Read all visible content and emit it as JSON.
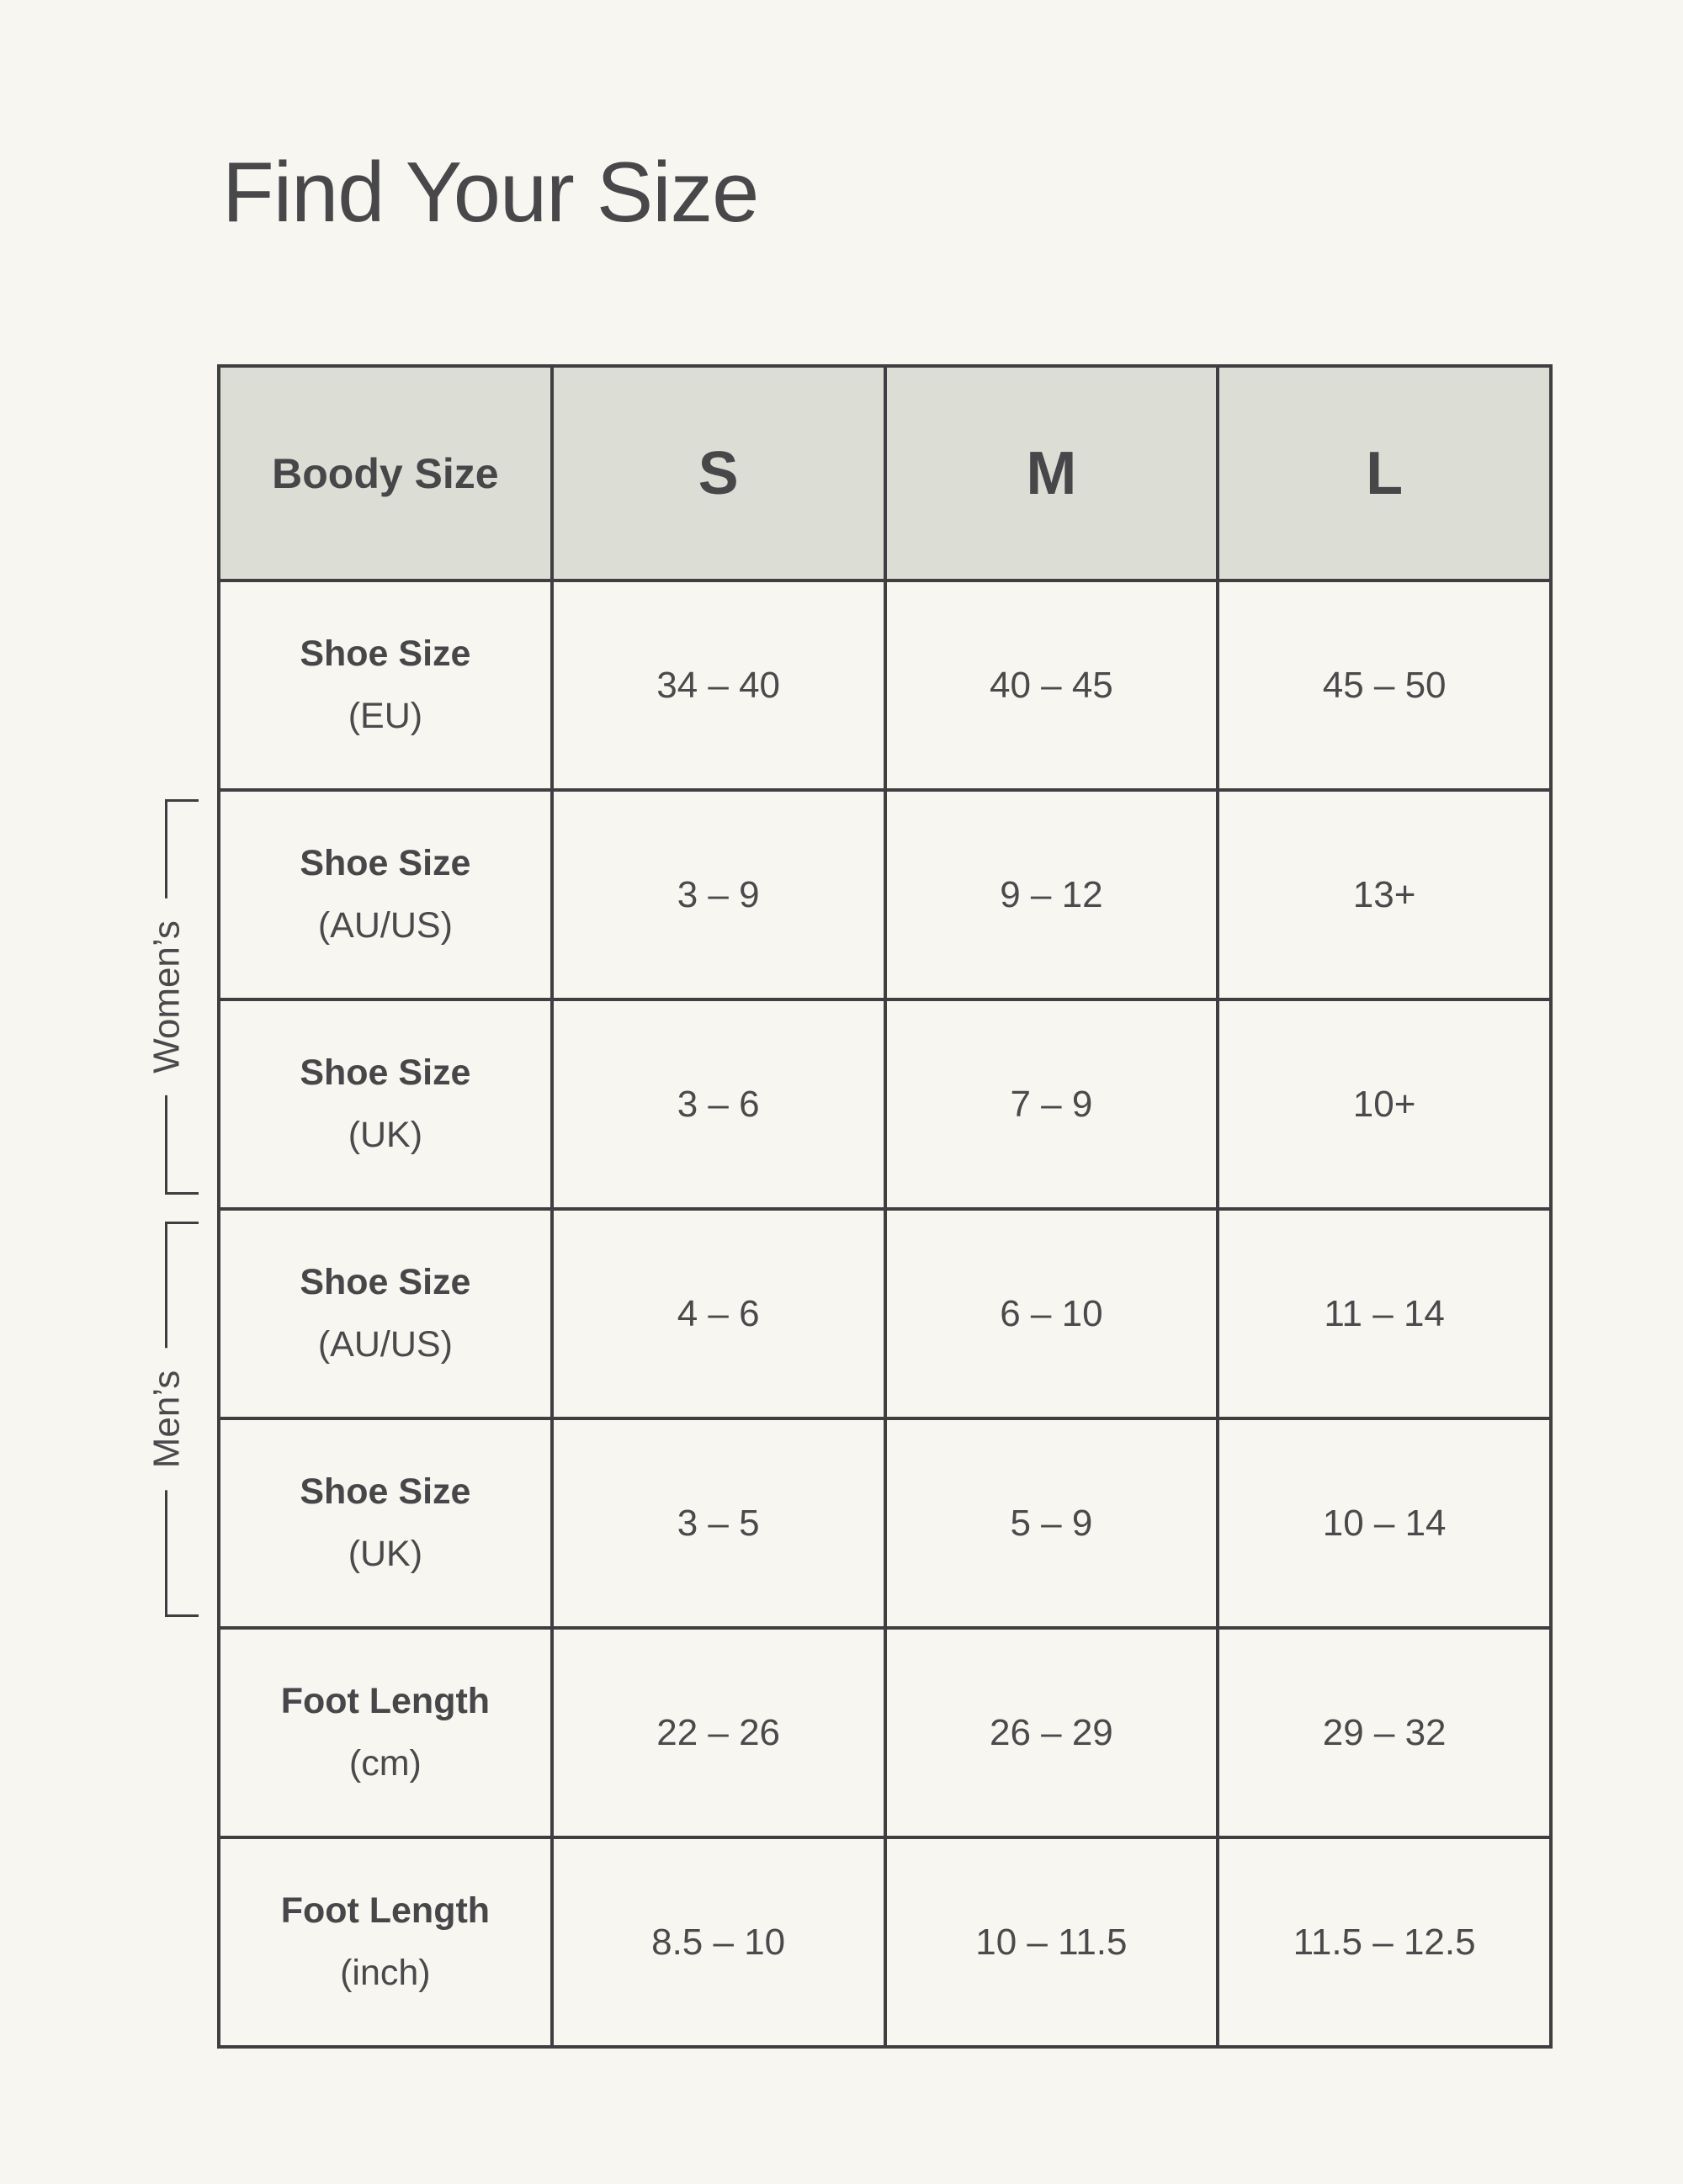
{
  "title": "Find Your Size",
  "groups": {
    "womens": "Women’s",
    "mens": "Men’s"
  },
  "colors": {
    "page_background": "#f7f6f0",
    "header_background": "#dcddd5",
    "table_border": "#3f3f41",
    "text": "#4a4a4c"
  },
  "chart_data": {
    "type": "table",
    "title": "Find Your Size",
    "columns": [
      "Boody Size",
      "S",
      "M",
      "L"
    ],
    "rows": [
      {
        "label": "Shoe Size",
        "unit": "(EU)",
        "group": "",
        "values": [
          "34 – 40",
          "40 – 45",
          "45 – 50"
        ]
      },
      {
        "label": "Shoe Size",
        "unit": "(AU/US)",
        "group": "Women’s",
        "values": [
          "3 – 9",
          "9 – 12",
          "13+"
        ]
      },
      {
        "label": "Shoe Size",
        "unit": "(UK)",
        "group": "Women’s",
        "values": [
          "3 – 6",
          "7 – 9",
          "10+"
        ]
      },
      {
        "label": "Shoe Size",
        "unit": "(AU/US)",
        "group": "Men’s",
        "values": [
          "4 – 6",
          "6 – 10",
          "11 – 14"
        ]
      },
      {
        "label": "Shoe Size",
        "unit": "(UK)",
        "group": "Men’s",
        "values": [
          "3 – 5",
          "5 – 9",
          "10 – 14"
        ]
      },
      {
        "label": "Foot Length",
        "unit": "(cm)",
        "group": "",
        "values": [
          "22 – 26",
          "26 – 29",
          "29 – 32"
        ]
      },
      {
        "label": "Foot Length",
        "unit": "(inch)",
        "group": "",
        "values": [
          "8.5 – 10",
          "10 – 11.5",
          "11.5 – 12.5"
        ]
      }
    ]
  }
}
